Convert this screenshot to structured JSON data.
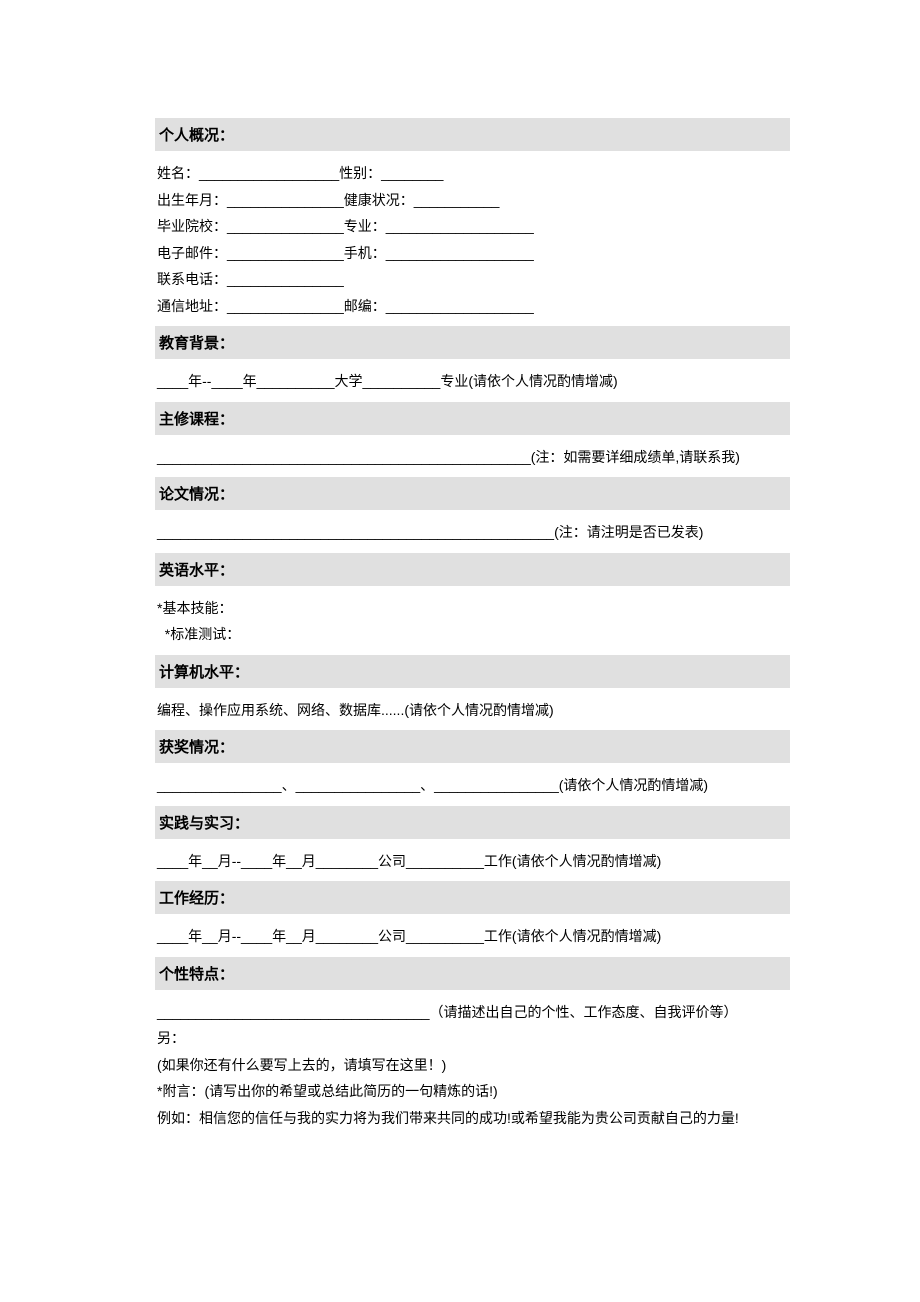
{
  "colors": {
    "header_bg": "#e0e0e0",
    "text": "#000000",
    "page_bg": "#ffffff"
  },
  "sections": {
    "personal": {
      "title": "个人概况：",
      "lines": [
        "姓名：__________________性别：________",
        "出生年月：_______________健康状况：___________",
        "毕业院校：_______________专业：___________________",
        "电子邮件：_______________手机：___________________",
        "联系电话：_______________",
        "通信地址：_______________邮编：___________________"
      ]
    },
    "education": {
      "title": "教育背景：",
      "line": "____年--____年__________大学__________专业(请依个人情况酌情增减)"
    },
    "courses": {
      "title": "主修课程：",
      "line": "________________________________________________(注：如需要详细成绩单,请联系我)"
    },
    "thesis": {
      "title": "论文情况：",
      "line": "___________________________________________________(注：请注明是否已发表)"
    },
    "english": {
      "title": "英语水平：",
      "line1": "*基本技能：",
      "line2": "  *标准测试："
    },
    "computer": {
      "title": "计算机水平：",
      "line": "编程、操作应用系统、网络、数据库......(请依个人情况酌情增减)"
    },
    "awards": {
      "title": "获奖情况：",
      "line": "________________、________________、________________(请依个人情况酌情增减)"
    },
    "practice": {
      "title": "实践与实习：",
      "line": "____年__月--____年__月________公司__________工作(请依个人情况酌情增减)"
    },
    "work": {
      "title": "工作经历：",
      "line": "____年__月--____年__月________公司__________工作(请依个人情况酌情增减)"
    },
    "personality": {
      "title": "个性特点：",
      "line1": "___________________________________（请描述出自己的个性、工作态度、自我评价等）",
      "line2": "另：",
      "line3": "(如果你还有什么要写上去的，请填写在这里！)",
      "line4": "*附言：(请写出你的希望或总结此简历的一句精炼的话!)",
      "line5": "例如：相信您的信任与我的实力将为我们带来共同的成功!或希望我能为贵公司贡献自己的力量!"
    }
  }
}
